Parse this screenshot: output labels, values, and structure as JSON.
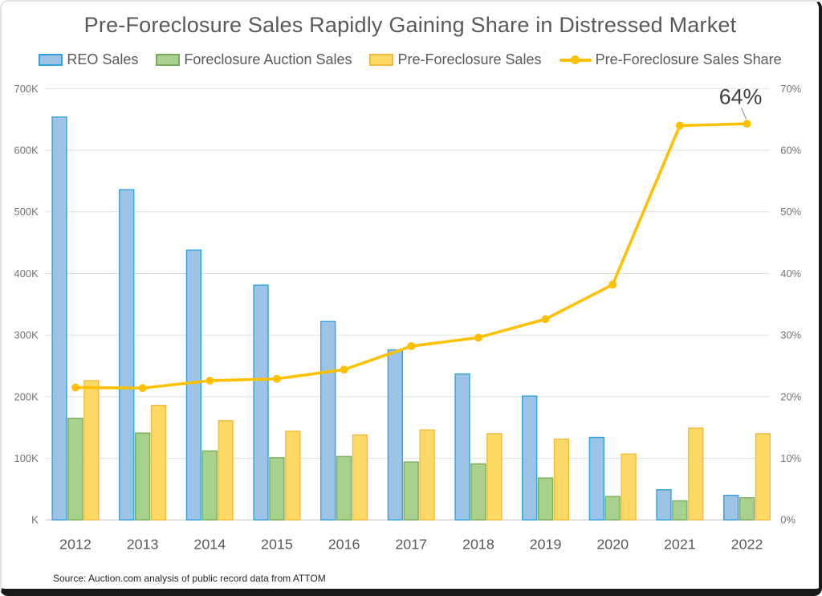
{
  "source_note": "Source: Auction.com analysis of public record data from ATTOM",
  "chart_data": {
    "type": "combo-bar-line",
    "title": "Pre-Foreclosure Sales Rapidly Gaining Share in Distressed Market",
    "legend_position": "top",
    "gridlines": true,
    "categories": [
      "2012",
      "2013",
      "2014",
      "2015",
      "2016",
      "2017",
      "2018",
      "2019",
      "2020",
      "2021",
      "2022"
    ],
    "series": [
      {
        "name": "REO Sales",
        "type": "bar",
        "axis": "left",
        "unit": "thousands",
        "color": "#9DC3E6",
        "border": "#2EA3DC",
        "values": [
          654,
          536,
          438,
          381,
          322,
          276,
          237,
          201,
          134,
          49,
          40
        ]
      },
      {
        "name": "Foreclosure Auction Sales",
        "type": "bar",
        "axis": "left",
        "unit": "thousands",
        "color": "#A9D18E",
        "border": "#7AAD5B",
        "values": [
          165,
          141,
          112,
          101,
          103,
          94,
          91,
          68,
          38,
          31,
          36
        ]
      },
      {
        "name": "Pre-Foreclosure Sales",
        "type": "bar",
        "axis": "left",
        "unit": "thousands",
        "color": "#FFD966",
        "border": "#F2BA3B",
        "values": [
          226,
          186,
          161,
          144,
          138,
          146,
          140,
          131,
          107,
          149,
          140
        ]
      },
      {
        "name": "Pre-Foreclosure Sales Share",
        "type": "line",
        "axis": "right",
        "unit": "percent",
        "color": "#FFC000",
        "values": [
          21.5,
          21.4,
          22.6,
          22.9,
          24.4,
          28.2,
          29.6,
          32.6,
          38.2,
          64.0,
          64.3
        ]
      }
    ],
    "left_axis": {
      "min": 0,
      "max": 700,
      "ticks": [
        "700K",
        "600K",
        "500K",
        "400K",
        "300K",
        "200K",
        "100K",
        "K"
      ]
    },
    "right_axis": {
      "min": 0,
      "max": 70,
      "ticks": [
        "70%",
        "60%",
        "50%",
        "40%",
        "30%",
        "20%",
        "10%",
        "0%"
      ]
    },
    "annotation": {
      "text": "64%",
      "series": "Pre-Foreclosure Sales Share",
      "category": "2022"
    }
  }
}
